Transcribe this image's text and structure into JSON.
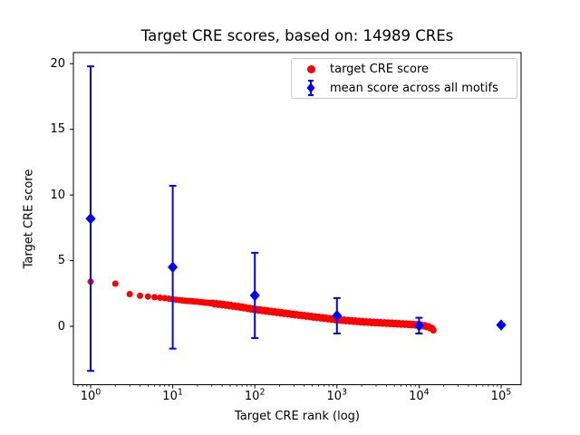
{
  "title": "Target CRE scores, based on: 14989 CREs",
  "axes": {
    "xlabel": "Target CRE rank (log)",
    "ylabel": "Target CRE score",
    "x_tick_base": "10",
    "x_tick_exponents": [
      0,
      1,
      2,
      3,
      4,
      5
    ],
    "y_ticks": [
      0,
      5,
      10,
      15,
      20
    ]
  },
  "legend": {
    "items": [
      {
        "label": "target CRE score",
        "marker": "circle-marker-icon",
        "color": "#ff0000"
      },
      {
        "label": "mean score across all motifs",
        "marker": "diamond-errorbar-marker-icon",
        "color": "#0000ff"
      }
    ]
  },
  "chart_data": {
    "type": "scatter",
    "title": "Target CRE scores, based on: 14989 CREs",
    "xlabel": "Target CRE rank (log)",
    "ylabel": "Target CRE score",
    "x_scale": "log",
    "grid": false,
    "xlim": [
      0.617,
      175000
    ],
    "ylim": [
      -4.45,
      20.85
    ],
    "x_ticks": [
      1,
      10,
      100,
      1000,
      10000,
      100000
    ],
    "y_ticks": [
      0,
      5,
      10,
      15,
      20
    ],
    "legend_position": "upper right inside axes",
    "n_points": 14989,
    "series": [
      {
        "name": "target CRE score",
        "type": "scatter-curve",
        "color": "#ff0000",
        "marker": "circle",
        "note": "14989 ranked CRE scores forming a dense decreasing band; anchor points (rank, score) read from plot",
        "curve_anchors": [
          [
            1,
            3.4
          ],
          [
            2,
            3.25
          ],
          [
            3,
            2.45
          ],
          [
            4,
            2.32
          ],
          [
            5,
            2.27
          ],
          [
            6,
            2.22
          ],
          [
            7,
            2.18
          ],
          [
            8,
            2.14
          ],
          [
            9,
            2.1
          ],
          [
            10,
            2.05
          ],
          [
            13,
            1.97
          ],
          [
            16,
            1.92
          ],
          [
            20,
            1.87
          ],
          [
            30,
            1.75
          ],
          [
            50,
            1.58
          ],
          [
            70,
            1.45
          ],
          [
            100,
            1.28
          ],
          [
            150,
            1.14
          ],
          [
            200,
            1.04
          ],
          [
            300,
            0.9
          ],
          [
            500,
            0.73
          ],
          [
            700,
            0.62
          ],
          [
            1000,
            0.5
          ],
          [
            1500,
            0.41
          ],
          [
            2000,
            0.35
          ],
          [
            3000,
            0.28
          ],
          [
            5000,
            0.21
          ],
          [
            7000,
            0.16
          ],
          [
            10000,
            0.1
          ],
          [
            12000,
            0.02
          ],
          [
            14000,
            -0.12
          ],
          [
            14989,
            -0.28
          ]
        ]
      },
      {
        "name": "mean score across all motifs",
        "type": "errorbar",
        "color": "#0000ff",
        "marker": "diamond",
        "x": [
          1,
          10,
          100,
          1000,
          10000,
          100000
        ],
        "y": [
          8.2,
          4.5,
          2.35,
          0.8,
          0.05,
          0.1
        ],
        "yerr": [
          11.6,
          6.2,
          3.25,
          1.35,
          0.6,
          0
        ]
      }
    ]
  }
}
